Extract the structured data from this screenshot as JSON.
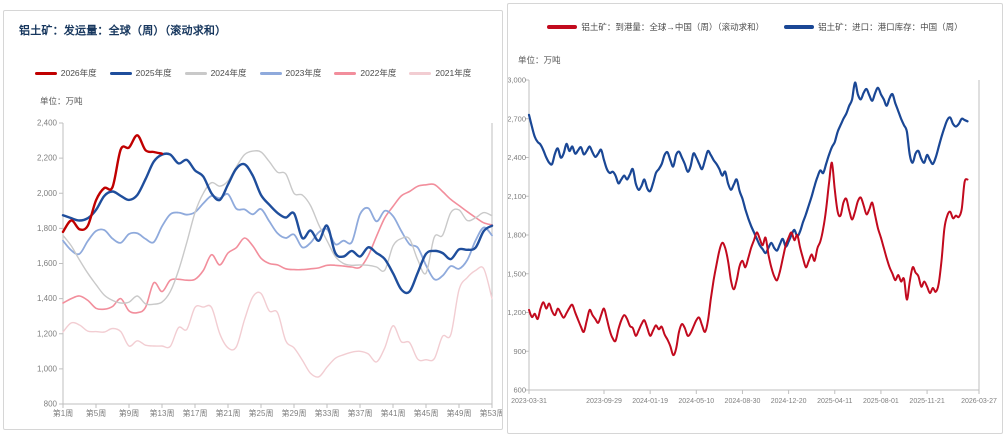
{
  "chart_data": [
    {
      "type": "line",
      "title": "铝土矿：发运量：全球（周）（滚动求和）",
      "unit": "单位：万吨",
      "grid": false,
      "legend_position": "top",
      "ylim": [
        800,
        2400
      ],
      "y_step": 200,
      "y_tick_labels": [
        "800",
        "1,000",
        "1,200",
        "1,400",
        "1,600",
        "1,800",
        "2,000",
        "2,200",
        "2,400"
      ],
      "x_domain": [
        1,
        53
      ],
      "x_tick_weeks": [
        1,
        5,
        9,
        13,
        17,
        21,
        25,
        29,
        33,
        37,
        41,
        45,
        49,
        53
      ],
      "x_tick_labels": [
        "第1周",
        "第5周",
        "第9周",
        "第13周",
        "第17周",
        "第21周",
        "第25周",
        "第29周",
        "第33周",
        "第37周",
        "第41周",
        "第45周",
        "第49周",
        "第53周"
      ],
      "series": [
        {
          "name": "2026年度",
          "color": "#c00000",
          "width": 2.4,
          "values": [
            1780,
            1845,
            1795,
            1815,
            1960,
            2030,
            2035,
            2250,
            2260,
            2330,
            2245,
            2235,
            2225
          ]
        },
        {
          "name": "2025年度",
          "color": "#1f4e9c",
          "width": 2.4,
          "values": [
            1875,
            1858,
            1845,
            1858,
            1905,
            1985,
            2010,
            1985,
            1962,
            1990,
            2080,
            2180,
            2220,
            2220,
            2170,
            2190,
            2130,
            2095,
            2000,
            1962,
            2050,
            2140,
            2165,
            2100,
            1990,
            1935,
            1888,
            1862,
            1885,
            1745,
            1788,
            1730,
            1815,
            1660,
            1640,
            1672,
            1640,
            1692,
            1660,
            1625,
            1545,
            1452,
            1440,
            1548,
            1655,
            1672,
            1660,
            1625,
            1680,
            1678,
            1690,
            1785,
            1815
          ]
        },
        {
          "name": "2024年度",
          "color": "#c9c9c9",
          "width": 1.4,
          "values": [
            1760,
            1700,
            1620,
            1545,
            1480,
            1420,
            1390,
            1375,
            1380,
            1415,
            1370,
            1368,
            1380,
            1440,
            1560,
            1720,
            1890,
            2000,
            2060,
            2040,
            2070,
            2150,
            2220,
            2240,
            2235,
            2180,
            2120,
            2110,
            2000,
            1990,
            1930,
            1820,
            1730,
            1640,
            1600,
            1590,
            1592,
            1590,
            1580,
            1562,
            1700,
            1742,
            1740,
            1620,
            1545,
            1750,
            1760,
            1890,
            1905,
            1845,
            1860,
            1890,
            1872
          ]
        },
        {
          "name": "2023年度",
          "color": "#8faadc",
          "width": 1.8,
          "values": [
            1730,
            1675,
            1655,
            1728,
            1785,
            1790,
            1742,
            1718,
            1768,
            1772,
            1740,
            1722,
            1812,
            1880,
            1890,
            1878,
            1892,
            1942,
            1985,
            1972,
            1995,
            1912,
            1908,
            1880,
            1910,
            1840,
            1772,
            1745,
            1765,
            1692,
            1718,
            1778,
            1795,
            1710,
            1730,
            1722,
            1880,
            1915,
            1840,
            1900,
            1870,
            1785,
            1710,
            1690,
            1590,
            1510,
            1530,
            1585,
            1570,
            1620,
            1730,
            1805,
            1760
          ]
        },
        {
          "name": "2022年度",
          "color": "#f28e9c",
          "width": 1.6,
          "values": [
            1375,
            1400,
            1415,
            1390,
            1345,
            1340,
            1355,
            1400,
            1330,
            1320,
            1350,
            1490,
            1440,
            1505,
            1510,
            1505,
            1510,
            1560,
            1650,
            1592,
            1660,
            1690,
            1745,
            1700,
            1630,
            1600,
            1592,
            1570,
            1565,
            1565,
            1570,
            1575,
            1590,
            1590,
            1585,
            1580,
            1578,
            1645,
            1755,
            1860,
            1925,
            1985,
            2010,
            2040,
            2048,
            2050,
            2010,
            1965,
            1930,
            1895,
            1862,
            1832,
            1820
          ]
        },
        {
          "name": "2021年度",
          "color": "#f2cdd2",
          "width": 1.4,
          "values": [
            1210,
            1262,
            1250,
            1215,
            1212,
            1210,
            1230,
            1212,
            1130,
            1160,
            1135,
            1130,
            1130,
            1128,
            1235,
            1225,
            1350,
            1352,
            1350,
            1200,
            1120,
            1125,
            1280,
            1410,
            1430,
            1330,
            1320,
            1160,
            1120,
            1050,
            975,
            955,
            1010,
            1060,
            1080,
            1095,
            1100,
            1085,
            1040,
            1120,
            1245,
            1155,
            1150,
            1055,
            1052,
            1058,
            1185,
            1195,
            1450,
            1520,
            1560,
            1570,
            1400
          ]
        }
      ]
    },
    {
      "type": "line",
      "title": "",
      "unit": "单位：万吨",
      "grid": false,
      "legend_position": "top",
      "ylim": [
        600,
        3000
      ],
      "y_step": 300,
      "y_tick_labels": [
        "600",
        "900",
        "1,200",
        "1,500",
        "1,800",
        "2,100",
        "2,400",
        "2,700",
        "3,000"
      ],
      "x_domain": [
        0,
        156
      ],
      "x_tick_weeks": [
        0,
        26,
        42,
        58,
        74,
        90,
        106,
        122,
        138,
        156
      ],
      "x_tick_labels": [
        "2023-03-31",
        "2023-09-29",
        "2024-01-19",
        "2024-05-10",
        "2024-08-30",
        "2024-12-20",
        "2025-04-11",
        "2025-08-01",
        "2025-11-21",
        "2026-03-27"
      ],
      "series": [
        {
          "name": "铝土矿：到港量：全球→中国（周）（滚动求和）",
          "color": "#c20a1e",
          "width": 2.0,
          "values": [
            1220,
            1165,
            1190,
            1150,
            1230,
            1280,
            1230,
            1270,
            1210,
            1180,
            1230,
            1195,
            1160,
            1195,
            1235,
            1260,
            1200,
            1145,
            1090,
            1050,
            1135,
            1220,
            1180,
            1150,
            1120,
            1180,
            1230,
            1150,
            1060,
            1000,
            980,
            1070,
            1140,
            1180,
            1150,
            1095,
            1080,
            1020,
            1060,
            1110,
            1140,
            1080,
            1020,
            1060,
            1100,
            1070,
            1090,
            1030,
            990,
            940,
            870,
            920,
            1050,
            1110,
            1080,
            1020,
            1040,
            1090,
            1140,
            1160,
            1100,
            1050,
            1130,
            1300,
            1450,
            1570,
            1680,
            1740,
            1700,
            1600,
            1450,
            1380,
            1450,
            1560,
            1600,
            1550,
            1620,
            1700,
            1760,
            1820,
            1770,
            1720,
            1780,
            1650,
            1550,
            1480,
            1450,
            1520,
            1620,
            1720,
            1780,
            1820,
            1760,
            1800,
            1700,
            1620,
            1550,
            1600,
            1650,
            1600,
            1700,
            1750,
            1850,
            2000,
            2200,
            2360,
            2150,
            1980,
            1950,
            2050,
            2080,
            1990,
            1920,
            1980,
            2060,
            2090,
            2030,
            1960,
            2000,
            2050,
            1950,
            1850,
            1780,
            1700,
            1620,
            1550,
            1500,
            1450,
            1490,
            1440,
            1460,
            1300,
            1440,
            1550,
            1510,
            1480,
            1400,
            1440,
            1400,
            1350,
            1390,
            1360,
            1420,
            1600,
            1850,
            1950,
            1980,
            1930,
            1950,
            1940,
            2000,
            2210,
            2230
          ]
        },
        {
          "name": "铝土矿：进口：港口库存：中国（周）",
          "color": "#1a4795",
          "width": 2.2,
          "values": [
            2730,
            2640,
            2560,
            2520,
            2500,
            2455,
            2400,
            2360,
            2350,
            2430,
            2470,
            2400,
            2430,
            2505,
            2450,
            2485,
            2430,
            2455,
            2480,
            2425,
            2450,
            2485,
            2440,
            2405,
            2430,
            2460,
            2380,
            2310,
            2280,
            2290,
            2260,
            2200,
            2230,
            2260,
            2230,
            2270,
            2310,
            2200,
            2150,
            2180,
            2230,
            2160,
            2140,
            2200,
            2280,
            2310,
            2350,
            2420,
            2440,
            2380,
            2330,
            2420,
            2445,
            2400,
            2350,
            2290,
            2330,
            2430,
            2400,
            2350,
            2310,
            2380,
            2450,
            2420,
            2380,
            2350,
            2310,
            2260,
            2290,
            2200,
            2150,
            2190,
            2230,
            2140,
            2080,
            2000,
            1930,
            1870,
            1820,
            1770,
            1720,
            1690,
            1660,
            1700,
            1740,
            1700,
            1680,
            1730,
            1770,
            1710,
            1750,
            1800,
            1840,
            1790,
            1830,
            1900,
            1960,
            2030,
            2100,
            2180,
            2250,
            2300,
            2280,
            2350,
            2420,
            2480,
            2520,
            2600,
            2650,
            2700,
            2740,
            2800,
            2850,
            2980,
            2890,
            2850,
            2900,
            2930,
            2880,
            2840,
            2900,
            2940,
            2890,
            2850,
            2800,
            2860,
            2890,
            2820,
            2760,
            2700,
            2650,
            2600,
            2420,
            2360,
            2430,
            2450,
            2390,
            2360,
            2420,
            2380,
            2350,
            2400,
            2480,
            2560,
            2630,
            2690,
            2710,
            2660,
            2640,
            2660,
            2700,
            2690,
            2680
          ]
        }
      ]
    }
  ]
}
